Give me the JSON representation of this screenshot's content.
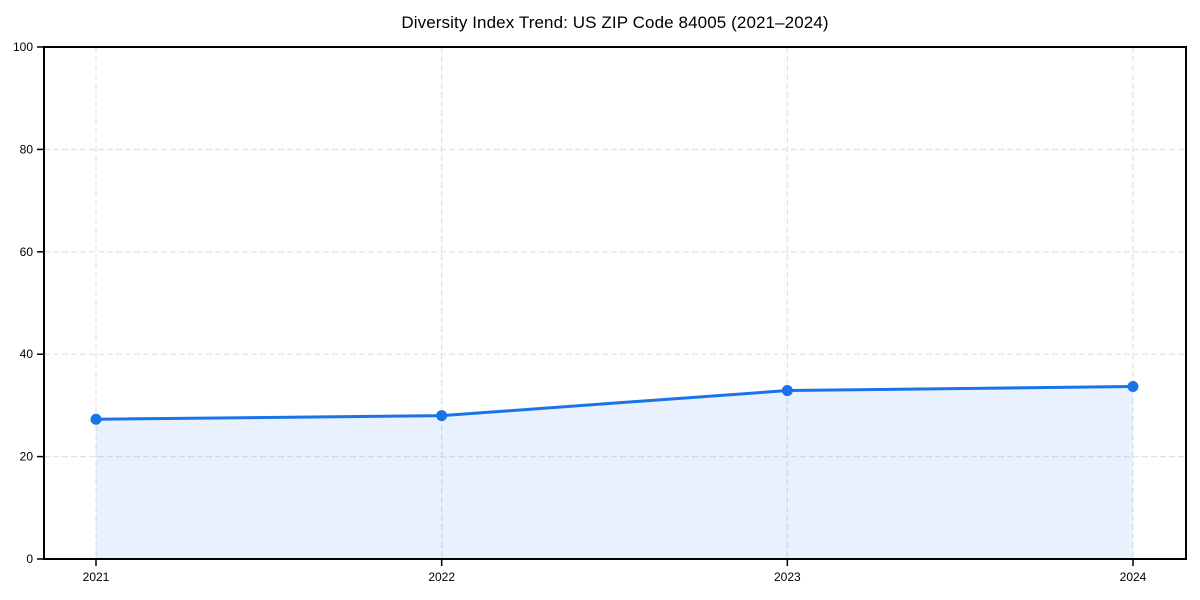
{
  "chart_data": {
    "type": "area",
    "title": "Diversity Index Trend: US ZIP Code 84005 (2021–2024)",
    "x": [
      "2021",
      "2022",
      "2023",
      "2024"
    ],
    "values": [
      27.3,
      28.0,
      32.9,
      33.7
    ],
    "ylim": [
      0,
      100
    ],
    "yticks": [
      0,
      20,
      40,
      60,
      80,
      100
    ],
    "xticks": [
      "2021",
      "2022",
      "2023",
      "2024"
    ],
    "grid": true,
    "grid_style": "dashed",
    "legend_position": "none",
    "colors": {
      "line": "#1a73e8",
      "marker": "#1a73e8",
      "fill": "#1a73e8",
      "fill_opacity": 0.1,
      "grid": "#e2e2e2",
      "spine": "#000000",
      "tick_text": "#000000",
      "background": "#ffffff"
    }
  }
}
